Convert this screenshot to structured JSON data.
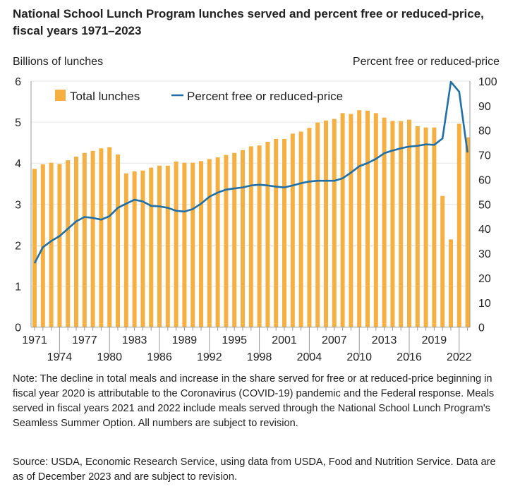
{
  "chart_data": {
    "type": "bar+line",
    "title": "National School Lunch Program lunches served and percent free or reduced-price, fiscal years 1971–2023",
    "ylabel_left": "Billions of lunches",
    "ylabel_right": "Percent free or reduced-price",
    "ylim_left": [
      0,
      6
    ],
    "ylim_right": [
      0,
      100
    ],
    "yticks_left": [
      0,
      1,
      2,
      3,
      4,
      5,
      6
    ],
    "yticks_right": [
      0,
      10,
      20,
      30,
      40,
      50,
      60,
      70,
      80,
      90,
      100
    ],
    "xtick_labels_row1": [
      "1971",
      "1977",
      "1983",
      "1989",
      "1995",
      "2001",
      "2007",
      "2013",
      "2019"
    ],
    "xtick_labels_row2": [
      "1974",
      "1980",
      "1986",
      "1992",
      "1998",
      "2004",
      "2010",
      "2016",
      "2022"
    ],
    "legend_placement": "top-left",
    "grid": "horizontal",
    "x": [
      1971,
      1972,
      1973,
      1974,
      1975,
      1976,
      1977,
      1978,
      1979,
      1980,
      1981,
      1982,
      1983,
      1984,
      1985,
      1986,
      1987,
      1988,
      1989,
      1990,
      1991,
      1992,
      1993,
      1994,
      1995,
      1996,
      1997,
      1998,
      1999,
      2000,
      2001,
      2002,
      2003,
      2004,
      2005,
      2006,
      2007,
      2008,
      2009,
      2010,
      2011,
      2012,
      2013,
      2014,
      2015,
      2016,
      2017,
      2018,
      2019,
      2020,
      2021,
      2022,
      2023
    ],
    "series": [
      {
        "name": "Total lunches",
        "type": "bar",
        "axis": "left",
        "color": "#F5B041",
        "values": [
          3.86,
          3.97,
          4.01,
          3.98,
          4.07,
          4.16,
          4.25,
          4.3,
          4.36,
          4.39,
          4.21,
          3.75,
          3.8,
          3.82,
          3.89,
          3.94,
          3.94,
          4.04,
          4.01,
          4.01,
          4.05,
          4.1,
          4.14,
          4.2,
          4.25,
          4.32,
          4.41,
          4.43,
          4.52,
          4.59,
          4.59,
          4.72,
          4.77,
          4.86,
          4.99,
          5.04,
          5.08,
          5.22,
          5.2,
          5.29,
          5.28,
          5.22,
          5.11,
          5.03,
          5.02,
          5.06,
          4.9,
          4.87,
          4.87,
          3.2,
          2.14,
          4.96,
          4.63
        ]
      },
      {
        "name": "Percent free or reduced-price",
        "type": "line",
        "axis": "right",
        "color": "#1F6FA8",
        "values": [
          26,
          32.5,
          35,
          37,
          40,
          43,
          44.8,
          44.4,
          43.7,
          45.1,
          48.5,
          50.2,
          51.8,
          51.1,
          49.3,
          49.1,
          48.5,
          47.3,
          47,
          48,
          50.2,
          53,
          54.7,
          55.9,
          56.4,
          56.8,
          57.6,
          57.9,
          57.6,
          57.1,
          56.8,
          57.6,
          58.5,
          59.2,
          59.5,
          59.5,
          59.5,
          60.5,
          62.8,
          65.4,
          66.7,
          68.4,
          70.7,
          71.8,
          72.7,
          73.4,
          73.7,
          74.3,
          74.1,
          76.7,
          99.7,
          95.7,
          71
        ]
      }
    ]
  },
  "note": "Note: The decline in total meals and increase in the share served for free or at reduced-price beginning in fiscal year 2020 is attributable to the Coronavirus (COVID-19) pandemic and the Federal response. Meals served in fiscal years 2021 and 2022 include meals served through the National School Lunch Program's Seamless Summer Option. All numbers are subject to revision.",
  "source": "Source: USDA, Economic Research Service, using data from USDA, Food and Nutrition Service. Data are as of December 2023 and are subject to revision."
}
